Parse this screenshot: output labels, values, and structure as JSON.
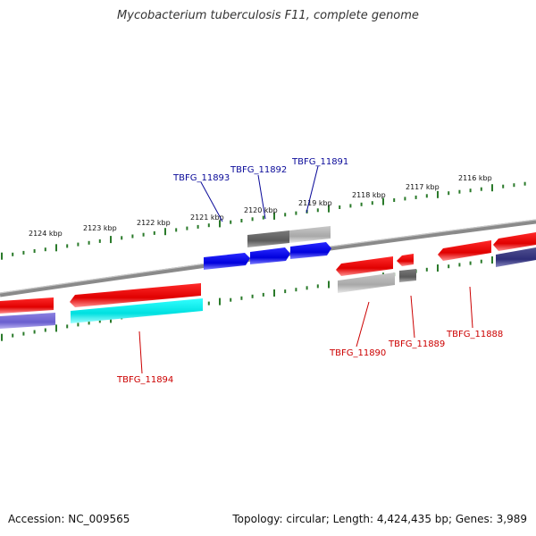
{
  "header": {
    "title": "Mycobacterium tuberculosis F11, complete genome"
  },
  "footer": {
    "accession": "Accession: NC_009565",
    "stats": "Topology: circular; Length: 4,424,435 bp; Genes: 3,989"
  },
  "ruler": {
    "ticks": [
      "2124 kbp",
      "2123 kbp",
      "2122 kbp",
      "2121 kbp",
      "2120 kbp",
      "2119 kbp",
      "2118 kbp",
      "2117 kbp",
      "2116 kbp"
    ]
  },
  "genes": {
    "forward": [
      "TBFG_11893",
      "TBFG_11892",
      "TBFG_11891"
    ],
    "reverse": [
      "TBFG_11894",
      "TBFG_11890",
      "TBFG_11889",
      "TBFG_11888"
    ]
  },
  "colors": {
    "forward_label": "#0a0a99",
    "reverse_label": "#cc0000",
    "backbone": "#888888",
    "tick": "#2a7a2a"
  }
}
